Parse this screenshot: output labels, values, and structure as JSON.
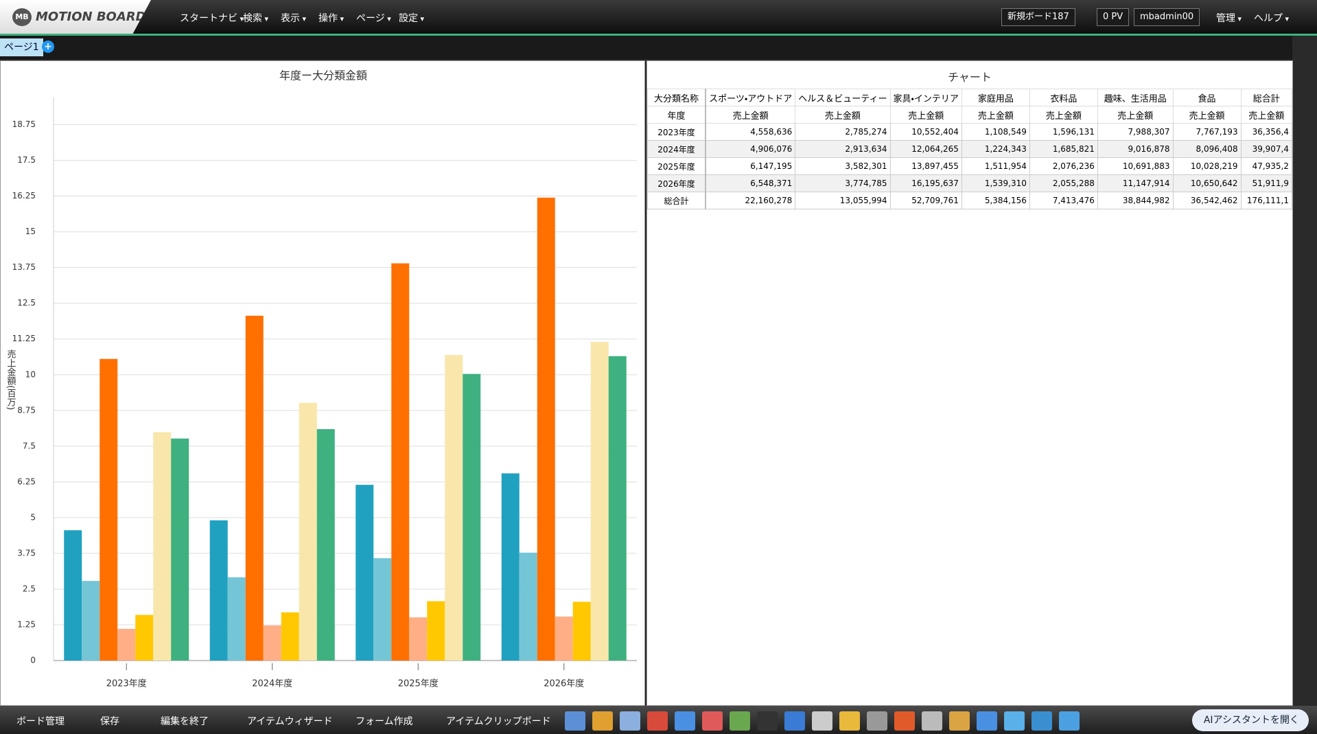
{
  "header": {
    "logo_mark": "MB",
    "logo": "MOTION BOARD",
    "menu": [
      "スタートナビ",
      "検索",
      "表示",
      "操作",
      "ページ",
      "設定"
    ],
    "board": "新規ボード187",
    "pv": "0 PV",
    "user": "mbadmin00",
    "right_menu": [
      "管理",
      "ヘルプ"
    ]
  },
  "tabs": [
    "ページ1"
  ],
  "chart_data": {
    "type": "bar",
    "title": "年度ー大分類金額",
    "y_label": "売上金額(百万)",
    "categories": [
      "2023年度",
      "2024年度",
      "2025年度",
      "2026年度"
    ],
    "series": [
      {
        "color": "#21a1c0",
        "values": [
          4.558636,
          4.906076,
          6.147195,
          6.548371
        ]
      },
      {
        "color": "#74c5d5",
        "values": [
          2.785274,
          2.913634,
          3.582301,
          3.774785
        ]
      },
      {
        "color": "#ff7000",
        "values": [
          10.552404,
          12.064265,
          13.897455,
          16.195637
        ]
      },
      {
        "color": "#ffae86",
        "values": [
          1.108549,
          1.224343,
          1.511954,
          1.53931
        ]
      },
      {
        "color": "#ffc800",
        "values": [
          1.596131,
          1.685821,
          2.076236,
          2.055288
        ]
      },
      {
        "color": "#f8e6ab",
        "values": [
          7.988307,
          9.016878,
          10.691883,
          11.147914
        ]
      },
      {
        "color": "#3fb07f",
        "values": [
          7.767193,
          8.096408,
          10.028219,
          10.650642
        ]
      }
    ],
    "ylim": [
      0,
      19.7
    ],
    "yticks": [
      0,
      1.25,
      2.5,
      3.75,
      5,
      6.25,
      7.5,
      8.75,
      10,
      11.25,
      12.5,
      13.75,
      15,
      16.25,
      17.5,
      18.75
    ],
    "grid": true
  },
  "table": {
    "title": "チャート",
    "header": [
      "大分類名称",
      "スポーツ・アウトドア",
      "ヘルス＆ビューティー",
      "家具・インテリア",
      "家庭用品",
      "衣料品",
      "趣味、生活用品",
      "食品",
      "総合計"
    ],
    "subheader": [
      "年度",
      "売上金額",
      "売上金額",
      "売上金額",
      "売上金額",
      "売上金額",
      "売上金額",
      "売上金額",
      "売上金額"
    ],
    "rows": [
      [
        "2023年度",
        "4,558,636",
        "2,785,274",
        "10,552,404",
        "1,108,549",
        "1,596,131",
        "7,988,307",
        "7,767,193",
        "36,356,4"
      ],
      [
        "2024年度",
        "4,906,076",
        "2,913,634",
        "12,064,265",
        "1,224,343",
        "1,685,821",
        "9,016,878",
        "8,096,408",
        "39,907,4"
      ],
      [
        "2025年度",
        "6,147,195",
        "3,582,301",
        "13,897,455",
        "1,511,954",
        "2,076,236",
        "10,691,883",
        "10,028,219",
        "47,935,2"
      ],
      [
        "2026年度",
        "6,548,371",
        "3,774,785",
        "16,195,637",
        "1,539,310",
        "2,055,288",
        "11,147,914",
        "10,650,642",
        "51,911,9"
      ],
      [
        "総合計",
        "22,160,278",
        "13,055,994",
        "52,709,761",
        "5,384,156",
        "7,413,476",
        "38,844,982",
        "36,542,462",
        "176,111,1"
      ]
    ]
  },
  "toolbar": {
    "items": [
      "ボード管理",
      "保存",
      "編集を終了",
      "アイテムウィザード",
      "フォーム作成",
      "アイテムクリップボード"
    ],
    "assistant": "AIアシスタントを開く"
  }
}
